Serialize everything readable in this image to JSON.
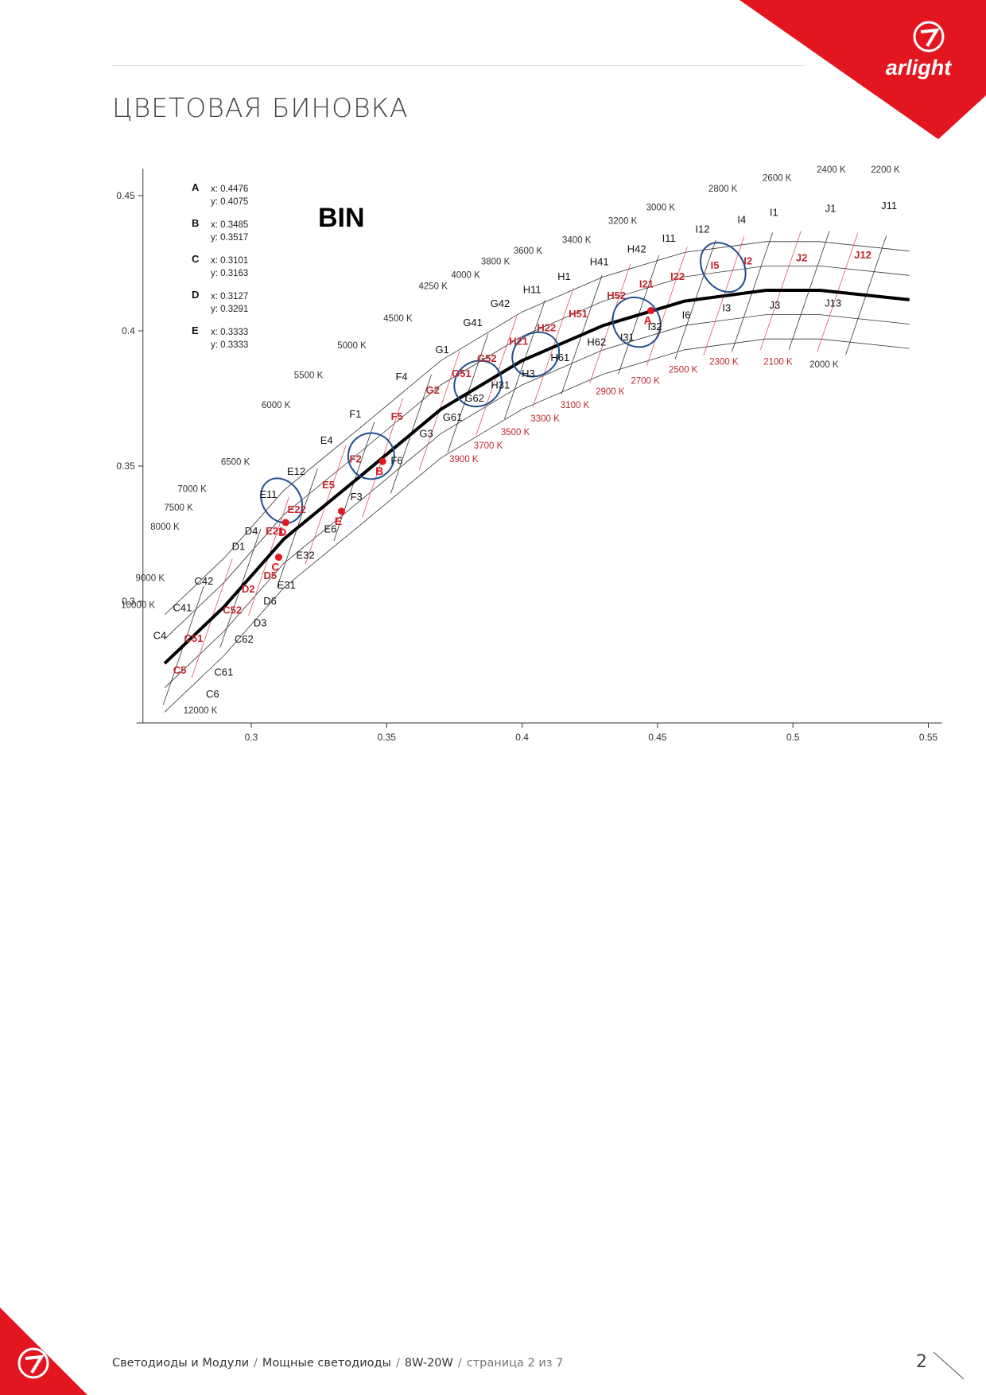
{
  "header": {
    "title": "ЦВЕТОВАЯ БИНОВКА"
  },
  "brand": {
    "logo_text": "arlight",
    "color": "#e3151f"
  },
  "footer": {
    "crumbs": [
      "Светодиоды и Модули",
      "Мощные светодиоды",
      "8W-20W"
    ],
    "page_text": "страница 2 из 7",
    "page_number": "2"
  },
  "chart_data": {
    "type": "scatter",
    "title": "BIN",
    "xlim": [
      0.26,
      0.555
    ],
    "ylim": [
      0.255,
      0.46
    ],
    "x_ticks": [
      "0.3",
      "0.35",
      "0.4",
      "0.45",
      "0.5",
      "0.55"
    ],
    "y_ticks": [
      "0.3",
      "0.35",
      "0.4",
      "0.45"
    ],
    "points": [
      {
        "label": "A",
        "x": 0.4476,
        "y": 0.4075,
        "x_text": "x: 0.4476",
        "y_text": "y: 0.4075"
      },
      {
        "label": "B",
        "x": 0.3485,
        "y": 0.3517,
        "x_text": "x: 0.3485",
        "y_text": "y: 0.3517"
      },
      {
        "label": "C",
        "x": 0.3101,
        "y": 0.3163,
        "x_text": "x: 0.3101",
        "y_text": "y: 0.3163"
      },
      {
        "label": "D",
        "x": 0.3127,
        "y": 0.3291,
        "x_text": "x: 0.3127",
        "y_text": "y: 0.3291"
      },
      {
        "label": "E",
        "x": 0.3333,
        "y": 0.3333,
        "x_text": "x: 0.3333",
        "y_text": "y: 0.3333"
      }
    ],
    "black_body_locus": [
      [
        0.268,
        0.277
      ],
      [
        0.29,
        0.298
      ],
      [
        0.312,
        0.323
      ],
      [
        0.34,
        0.346
      ],
      [
        0.37,
        0.371
      ],
      [
        0.4,
        0.389
      ],
      [
        0.43,
        0.402
      ],
      [
        0.46,
        0.411
      ],
      [
        0.49,
        0.415
      ],
      [
        0.51,
        0.415
      ],
      [
        0.543,
        0.4115
      ]
    ],
    "cct_labels_left": [
      {
        "text": "12000 K",
        "x": 0.2875,
        "y": 0.2585
      },
      {
        "text": "10000 K",
        "x": 0.2645,
        "y": 0.2975
      },
      {
        "text": "9000 K",
        "x": 0.268,
        "y": 0.3075
      },
      {
        "text": "8000 K",
        "x": 0.2735,
        "y": 0.3265
      },
      {
        "text": "7500 K",
        "x": 0.2785,
        "y": 0.3335
      },
      {
        "text": "7000 K",
        "x": 0.2835,
        "y": 0.3405
      },
      {
        "text": "6500 K",
        "x": 0.2995,
        "y": 0.3505
      },
      {
        "text": "6000 K",
        "x": 0.3145,
        "y": 0.3715
      },
      {
        "text": "5500 K",
        "x": 0.3265,
        "y": 0.3825
      },
      {
        "text": "5000 K",
        "x": 0.3425,
        "y": 0.3935
      },
      {
        "text": "4500 K",
        "x": 0.3595,
        "y": 0.4035
      },
      {
        "text": "4250 K",
        "x": 0.3725,
        "y": 0.4155
      },
      {
        "text": "4000 K",
        "x": 0.3845,
        "y": 0.4195
      },
      {
        "text": "3800 K",
        "x": 0.3955,
        "y": 0.4245
      },
      {
        "text": "3600 K",
        "x": 0.4075,
        "y": 0.4285
      },
      {
        "text": "3400 K",
        "x": 0.4255,
        "y": 0.4325
      },
      {
        "text": "3200 K",
        "x": 0.4425,
        "y": 0.4395
      },
      {
        "text": "3000 K",
        "x": 0.4565,
        "y": 0.4445
      },
      {
        "text": "2800 K",
        "x": 0.4795,
        "y": 0.4515
      },
      {
        "text": "2600 K",
        "x": 0.4995,
        "y": 0.4555
      },
      {
        "text": "2400 K",
        "x": 0.5195,
        "y": 0.4585
      },
      {
        "text": "2200 K",
        "x": 0.5395,
        "y": 0.4585
      }
    ],
    "cct_labels_right": [
      {
        "text": "3900 K",
        "x": 0.3785,
        "y": 0.3515,
        "red": true
      },
      {
        "text": "3700 K",
        "x": 0.3875,
        "y": 0.3565,
        "red": true
      },
      {
        "text": "3500 K",
        "x": 0.3975,
        "y": 0.3615,
        "red": true
      },
      {
        "text": "3300 K",
        "x": 0.4085,
        "y": 0.3665,
        "red": true
      },
      {
        "text": "3100 K",
        "x": 0.4195,
        "y": 0.3715,
        "red": true
      },
      {
        "text": "2900 K",
        "x": 0.4325,
        "y": 0.3765,
        "red": true
      },
      {
        "text": "2700 K",
        "x": 0.4455,
        "y": 0.3805,
        "red": true
      },
      {
        "text": "2500 K",
        "x": 0.4595,
        "y": 0.3845,
        "red": true
      },
      {
        "text": "2300 K",
        "x": 0.4745,
        "y": 0.3875,
        "red": true
      },
      {
        "text": "2100 K",
        "x": 0.4945,
        "y": 0.3875,
        "red": true
      },
      {
        "text": "2000 K",
        "x": 0.5115,
        "y": 0.3865,
        "red": false
      }
    ],
    "bin_labels": [
      {
        "t": "C6",
        "x": 0.2857,
        "y": 0.2644,
        "r": false
      },
      {
        "t": "C5",
        "x": 0.2736,
        "y": 0.2733,
        "r": true
      },
      {
        "t": "C61",
        "x": 0.2898,
        "y": 0.2725,
        "r": false
      },
      {
        "t": "C4",
        "x": 0.2662,
        "y": 0.286,
        "r": false
      },
      {
        "t": "C51",
        "x": 0.2787,
        "y": 0.285,
        "r": true
      },
      {
        "t": "C62",
        "x": 0.2973,
        "y": 0.2847,
        "r": false
      },
      {
        "t": "C41",
        "x": 0.2746,
        "y": 0.2963,
        "r": false
      },
      {
        "t": "C52",
        "x": 0.293,
        "y": 0.2955,
        "r": true
      },
      {
        "t": "D3",
        "x": 0.3033,
        "y": 0.2907,
        "r": false
      },
      {
        "t": "D6",
        "x": 0.3069,
        "y": 0.2988,
        "r": false
      },
      {
        "t": "C42",
        "x": 0.2825,
        "y": 0.3062,
        "r": false
      },
      {
        "t": "D2",
        "x": 0.2989,
        "y": 0.3033,
        "r": true
      },
      {
        "t": "D5",
        "x": 0.307,
        "y": 0.3082,
        "r": true
      },
      {
        "t": "E31",
        "x": 0.313,
        "y": 0.3047,
        "r": false
      },
      {
        "t": "D1",
        "x": 0.2953,
        "y": 0.319,
        "r": false
      },
      {
        "t": "E32",
        "x": 0.32,
        "y": 0.3157,
        "r": false
      },
      {
        "t": "D4",
        "x": 0.3,
        "y": 0.3247,
        "r": false
      },
      {
        "t": "E21",
        "x": 0.3087,
        "y": 0.3247,
        "r": true
      },
      {
        "t": "E6",
        "x": 0.3292,
        "y": 0.3255,
        "r": false
      },
      {
        "t": "E11",
        "x": 0.3063,
        "y": 0.3382,
        "r": false
      },
      {
        "t": "E22",
        "x": 0.3168,
        "y": 0.3327,
        "r": true
      },
      {
        "t": "E5",
        "x": 0.3285,
        "y": 0.3418,
        "r": true
      },
      {
        "t": "F3",
        "x": 0.3388,
        "y": 0.3373,
        "r": false
      },
      {
        "t": "E12",
        "x": 0.3166,
        "y": 0.3467,
        "r": false
      },
      {
        "t": "F2",
        "x": 0.3385,
        "y": 0.3513,
        "r": true
      },
      {
        "t": "F6",
        "x": 0.3537,
        "y": 0.3507,
        "r": false
      },
      {
        "t": "E4",
        "x": 0.3278,
        "y": 0.3582,
        "r": false
      },
      {
        "t": "G3",
        "x": 0.3646,
        "y": 0.3608,
        "r": false
      },
      {
        "t": "F1",
        "x": 0.3384,
        "y": 0.368,
        "r": false
      },
      {
        "t": "F5",
        "x": 0.3538,
        "y": 0.367,
        "r": true
      },
      {
        "t": "G61",
        "x": 0.3743,
        "y": 0.3668,
        "r": false
      },
      {
        "t": "G2",
        "x": 0.367,
        "y": 0.3767,
        "r": true
      },
      {
        "t": "G62",
        "x": 0.3824,
        "y": 0.3738,
        "r": false
      },
      {
        "t": "H31",
        "x": 0.392,
        "y": 0.3787,
        "r": false
      },
      {
        "t": "H3",
        "x": 0.4023,
        "y": 0.383,
        "r": false
      },
      {
        "t": "F4",
        "x": 0.3555,
        "y": 0.3818,
        "r": false
      },
      {
        "t": "G51",
        "x": 0.3776,
        "y": 0.383,
        "r": true
      },
      {
        "t": "G52",
        "x": 0.387,
        "y": 0.3885,
        "r": true
      },
      {
        "t": "H61",
        "x": 0.414,
        "y": 0.3888,
        "r": false
      },
      {
        "t": "G1",
        "x": 0.3705,
        "y": 0.3918,
        "r": false
      },
      {
        "t": "H21",
        "x": 0.3987,
        "y": 0.3948,
        "r": true
      },
      {
        "t": "H62",
        "x": 0.4275,
        "y": 0.3945,
        "r": false
      },
      {
        "t": "I31",
        "x": 0.4388,
        "y": 0.3963,
        "r": false
      },
      {
        "t": "G41",
        "x": 0.3818,
        "y": 0.4018,
        "r": false
      },
      {
        "t": "H22",
        "x": 0.409,
        "y": 0.3998,
        "r": true
      },
      {
        "t": "I32",
        "x": 0.449,
        "y": 0.4003,
        "r": false
      },
      {
        "t": "H51",
        "x": 0.4207,
        "y": 0.405,
        "r": true
      },
      {
        "t": "I6",
        "x": 0.4606,
        "y": 0.4045,
        "r": false
      },
      {
        "t": "I3",
        "x": 0.4755,
        "y": 0.4072,
        "r": false
      },
      {
        "t": "J3",
        "x": 0.4933,
        "y": 0.4082,
        "r": false
      },
      {
        "t": "J13",
        "x": 0.5148,
        "y": 0.409,
        "r": false
      },
      {
        "t": "G42",
        "x": 0.3919,
        "y": 0.4088,
        "r": false
      },
      {
        "t": "H52",
        "x": 0.4348,
        "y": 0.4117,
        "r": true
      },
      {
        "t": "I21",
        "x": 0.4459,
        "y": 0.416,
        "r": true
      },
      {
        "t": "H11",
        "x": 0.4037,
        "y": 0.414,
        "r": false
      },
      {
        "t": "H1",
        "x": 0.4155,
        "y": 0.4188,
        "r": false
      },
      {
        "t": "I22",
        "x": 0.4574,
        "y": 0.4188,
        "r": true
      },
      {
        "t": "I5",
        "x": 0.4712,
        "y": 0.423,
        "r": true
      },
      {
        "t": "I2",
        "x": 0.4834,
        "y": 0.4245,
        "r": true
      },
      {
        "t": "J2",
        "x": 0.5032,
        "y": 0.4258,
        "r": true
      },
      {
        "t": "J12",
        "x": 0.5258,
        "y": 0.4268,
        "r": true
      },
      {
        "t": "H41",
        "x": 0.4285,
        "y": 0.4243,
        "r": false
      },
      {
        "t": "H42",
        "x": 0.4423,
        "y": 0.429,
        "r": false
      },
      {
        "t": "I11",
        "x": 0.4542,
        "y": 0.433,
        "r": false
      },
      {
        "t": "I12",
        "x": 0.4666,
        "y": 0.4363,
        "r": false
      },
      {
        "t": "I4",
        "x": 0.4811,
        "y": 0.4398,
        "r": false
      },
      {
        "t": "I1",
        "x": 0.493,
        "y": 0.4425,
        "r": false
      },
      {
        "t": "J1",
        "x": 0.5139,
        "y": 0.444,
        "r": false
      },
      {
        "t": "J11",
        "x": 0.5355,
        "y": 0.445,
        "r": false
      }
    ],
    "ellipses": [
      {
        "cx": 0.3112,
        "cy": 0.3372,
        "rx": 0.007,
        "ry": 0.0088
      },
      {
        "cx": 0.3443,
        "cy": 0.3537,
        "rx": 0.0085,
        "ry": 0.0085
      },
      {
        "cx": 0.3837,
        "cy": 0.3805,
        "rx": 0.009,
        "ry": 0.0082
      },
      {
        "cx": 0.405,
        "cy": 0.3913,
        "rx": 0.009,
        "ry": 0.0078
      },
      {
        "cx": 0.4423,
        "cy": 0.4032,
        "rx": 0.0085,
        "ry": 0.0095
      },
      {
        "cx": 0.4742,
        "cy": 0.4235,
        "rx": 0.0075,
        "ry": 0.0098
      }
    ],
    "grid": false,
    "colors": {
      "locus": "#000000",
      "points": "#e3151f",
      "ellipses": "#1f4e8c",
      "red_labels": "#c0272d"
    }
  }
}
